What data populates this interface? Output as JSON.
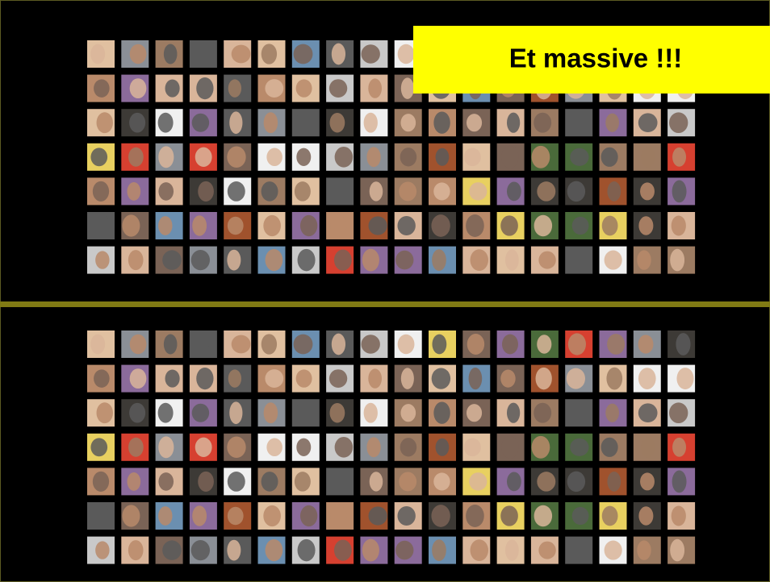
{
  "callout": {
    "text": "Et massive !!!"
  }
}
